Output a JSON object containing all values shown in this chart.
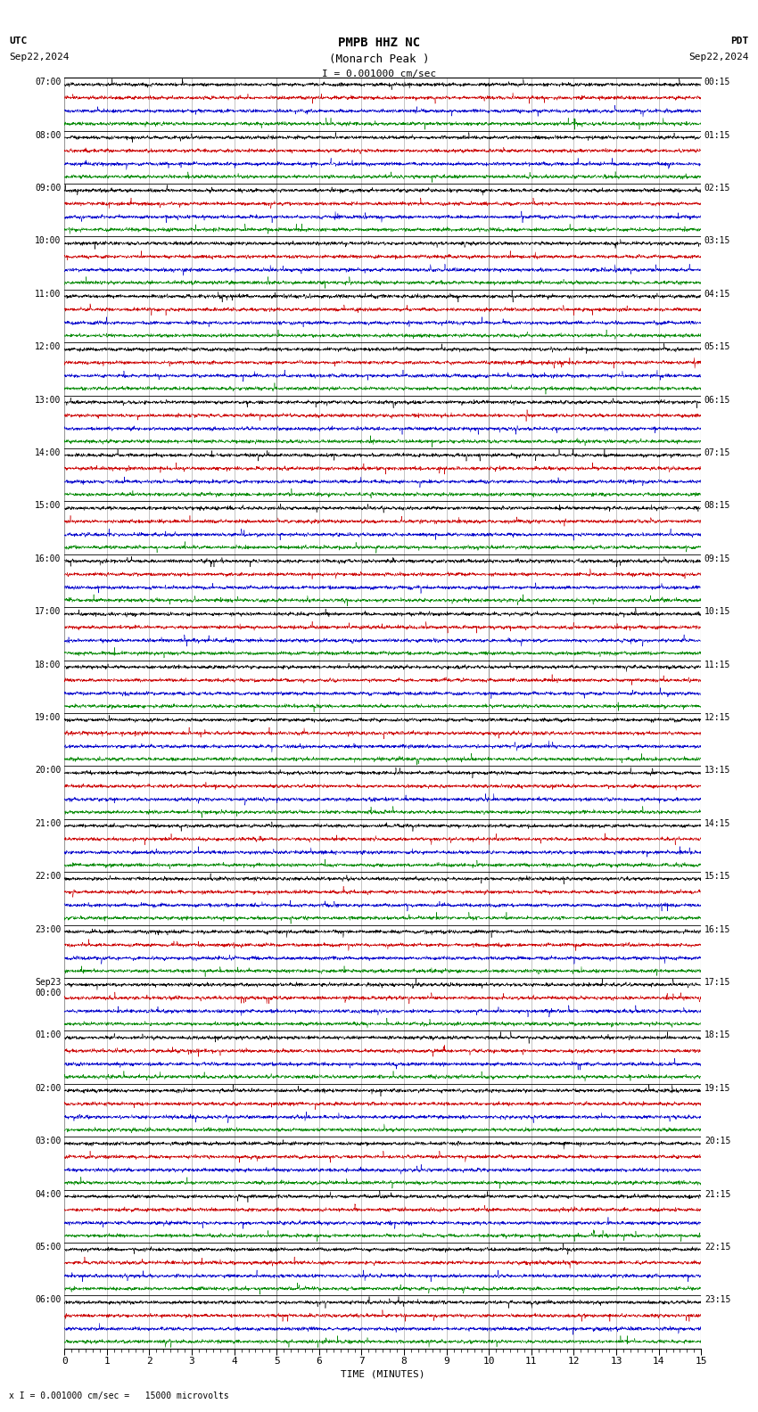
{
  "title_line1": "PMPB HHZ NC",
  "title_line2": "(Monarch Peak )",
  "scale_label": "I = 0.001000 cm/sec",
  "footer_label": "x I = 0.001000 cm/sec =   15000 microvolts",
  "utc_label": "UTC",
  "utc_date": "Sep22,2024",
  "pdt_label": "PDT",
  "pdt_date": "Sep22,2024",
  "xlabel": "TIME (MINUTES)",
  "bg_color": "#ffffff",
  "minutes_per_row": 15,
  "n_rows": 24,
  "left_times": [
    "07:00",
    "08:00",
    "09:00",
    "10:00",
    "11:00",
    "12:00",
    "13:00",
    "14:00",
    "15:00",
    "16:00",
    "17:00",
    "18:00",
    "19:00",
    "20:00",
    "21:00",
    "22:00",
    "23:00",
    "Sep23\n00:00",
    "01:00",
    "02:00",
    "03:00",
    "04:00",
    "05:00",
    "06:00"
  ],
  "right_times": [
    "00:15",
    "01:15",
    "02:15",
    "03:15",
    "04:15",
    "05:15",
    "06:15",
    "07:15",
    "08:15",
    "09:15",
    "10:15",
    "11:15",
    "12:15",
    "13:15",
    "14:15",
    "15:15",
    "16:15",
    "17:15",
    "18:15",
    "19:15",
    "20:15",
    "21:15",
    "22:15",
    "23:15"
  ],
  "n_subtraces": 4,
  "trace_colors_per_row": [
    [
      "#000000",
      "#cc0000",
      "#0000cc",
      "#008800"
    ],
    [
      "#000000",
      "#cc0000",
      "#0000cc",
      "#008800"
    ],
    [
      "#000000",
      "#cc0000",
      "#0000cc",
      "#008800"
    ],
    [
      "#000000",
      "#cc0000",
      "#0000cc",
      "#008800"
    ],
    [
      "#000000",
      "#cc0000",
      "#0000cc",
      "#008800"
    ],
    [
      "#000000",
      "#cc0000",
      "#0000cc",
      "#008800"
    ],
    [
      "#000000",
      "#cc0000",
      "#0000cc",
      "#008800"
    ],
    [
      "#000000",
      "#cc0000",
      "#0000cc",
      "#008800"
    ],
    [
      "#000000",
      "#cc0000",
      "#0000cc",
      "#008800"
    ],
    [
      "#000000",
      "#cc0000",
      "#0000cc",
      "#008800"
    ],
    [
      "#000000",
      "#cc0000",
      "#0000cc",
      "#008800"
    ],
    [
      "#000000",
      "#cc0000",
      "#0000cc",
      "#008800"
    ],
    [
      "#000000",
      "#cc0000",
      "#0000cc",
      "#008800"
    ],
    [
      "#000000",
      "#cc0000",
      "#0000cc",
      "#008800"
    ],
    [
      "#000000",
      "#cc0000",
      "#0000cc",
      "#008800"
    ],
    [
      "#000000",
      "#cc0000",
      "#0000cc",
      "#008800"
    ],
    [
      "#000000",
      "#cc0000",
      "#0000cc",
      "#008800"
    ],
    [
      "#000000",
      "#cc0000",
      "#0000cc",
      "#008800"
    ],
    [
      "#000000",
      "#cc0000",
      "#0000cc",
      "#008800"
    ],
    [
      "#000000",
      "#cc0000",
      "#0000cc",
      "#008800"
    ],
    [
      "#000000",
      "#cc0000",
      "#0000cc",
      "#008800"
    ],
    [
      "#000000",
      "#cc0000",
      "#0000cc",
      "#008800"
    ],
    [
      "#000000",
      "#cc0000",
      "#0000cc",
      "#008800"
    ],
    [
      "#000000",
      "#cc0000",
      "#0000cc",
      "#008800"
    ]
  ],
  "noise_amp": 0.018,
  "spike_amp": 0.06
}
